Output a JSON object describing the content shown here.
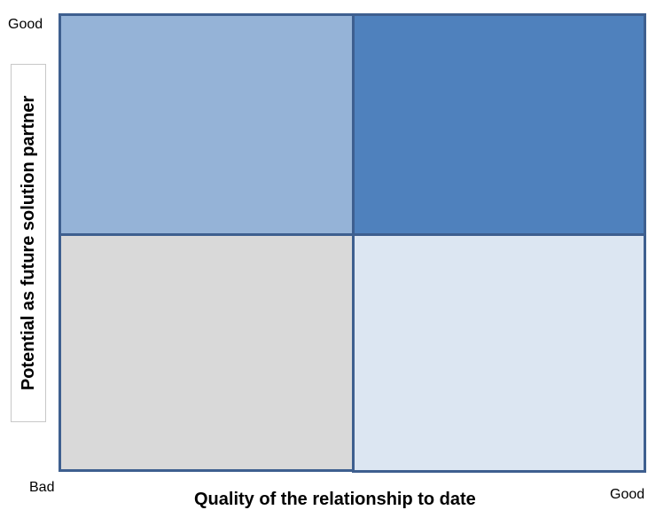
{
  "axes": {
    "x_title": "Quality of the relationship to date",
    "y_title": "Potential as future solution partner",
    "y_top_label": "Good",
    "origin_label": "Bad",
    "x_right_label": "Good"
  },
  "quadrants": {
    "top_left": {
      "color": "#95b3d7"
    },
    "top_right": {
      "color": "#4f81bd"
    },
    "bottom_left": {
      "color": "#d9d9d9"
    },
    "bottom_right": {
      "color": "#dce6f2"
    }
  },
  "colors": {
    "border": "#3e5f8f"
  }
}
